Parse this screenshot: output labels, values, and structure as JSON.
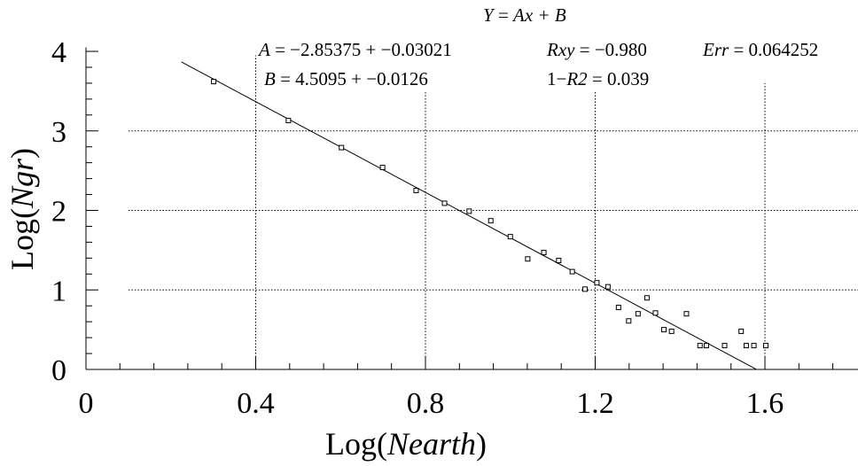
{
  "chart_data": {
    "type": "scatter",
    "equation": {
      "lhs": "Y",
      "rhs": "Ax + B"
    },
    "stats": {
      "A": {
        "symbol": "A",
        "text": " = −2.85375 + −0.03021"
      },
      "B": {
        "symbol": "B",
        "text": " = 4.5095 + −0.0126"
      },
      "Rxy": {
        "symbol": "Rxy",
        "text": " = −0.980"
      },
      "R2": {
        "prefix": "1−",
        "symbol": "R2",
        "text": " = 0.039"
      },
      "Err": {
        "symbol": "Err",
        "text": " = 0.064252"
      }
    },
    "xlabel": {
      "prefix": "Log(",
      "var": "Nearth",
      "suffix": ")"
    },
    "ylabel": {
      "prefix": "Log(",
      "var": "Ngr",
      "suffix": ")"
    },
    "xlim": [
      0,
      1.82
    ],
    "ylim": [
      0,
      4.05
    ],
    "x_ticks": [
      {
        "v": 0,
        "label": "0"
      },
      {
        "v": 0.4,
        "label": "0.4"
      },
      {
        "v": 0.8,
        "label": "0.8"
      },
      {
        "v": 1.2,
        "label": "1.2"
      },
      {
        "v": 1.6,
        "label": "1.6"
      }
    ],
    "y_ticks": [
      {
        "v": 0,
        "label": "0"
      },
      {
        "v": 1,
        "label": "1"
      },
      {
        "v": 2,
        "label": "2"
      },
      {
        "v": 3,
        "label": "3"
      },
      {
        "v": 4,
        "label": "4"
      }
    ],
    "grid": {
      "vertical": [
        {
          "x": 0.4,
          "y_from": 0,
          "y_to": 3.95
        },
        {
          "x": 0.8,
          "y_from": 0,
          "y_to": 3.5
        },
        {
          "x": 1.2,
          "y_from": 0,
          "y_to": 3.5
        },
        {
          "x": 1.6,
          "y_from": 0,
          "y_to": 3.6
        }
      ],
      "horizontal": [
        {
          "y": 1,
          "x_from": 0.1,
          "x_to": 1.82
        },
        {
          "y": 2,
          "x_from": 0.1,
          "x_to": 1.82
        },
        {
          "y": 3,
          "x_from": 0.1,
          "x_to": 1.82
        }
      ]
    },
    "fit": {
      "slope": -2.85375,
      "intercept": 4.5095,
      "x_from": 0.225,
      "x_to": 1.58
    },
    "points": [
      {
        "x": 0.301,
        "y": 3.62
      },
      {
        "x": 0.477,
        "y": 3.13
      },
      {
        "x": 0.602,
        "y": 2.79
      },
      {
        "x": 0.699,
        "y": 2.54
      },
      {
        "x": 0.778,
        "y": 2.25
      },
      {
        "x": 0.845,
        "y": 2.09
      },
      {
        "x": 0.903,
        "y": 1.99
      },
      {
        "x": 0.954,
        "y": 1.87
      },
      {
        "x": 1.0,
        "y": 1.67
      },
      {
        "x": 1.041,
        "y": 1.39
      },
      {
        "x": 1.079,
        "y": 1.47
      },
      {
        "x": 1.114,
        "y": 1.37
      },
      {
        "x": 1.146,
        "y": 1.23
      },
      {
        "x": 1.176,
        "y": 1.01
      },
      {
        "x": 1.204,
        "y": 1.09
      },
      {
        "x": 1.23,
        "y": 1.04
      },
      {
        "x": 1.255,
        "y": 0.78
      },
      {
        "x": 1.279,
        "y": 0.61
      },
      {
        "x": 1.301,
        "y": 0.7
      },
      {
        "x": 1.322,
        "y": 0.9
      },
      {
        "x": 1.342,
        "y": 0.71
      },
      {
        "x": 1.362,
        "y": 0.5
      },
      {
        "x": 1.38,
        "y": 0.48
      },
      {
        "x": 1.415,
        "y": 0.7
      },
      {
        "x": 1.447,
        "y": 0.3
      },
      {
        "x": 1.462,
        "y": 0.3
      },
      {
        "x": 1.505,
        "y": 0.3
      },
      {
        "x": 1.544,
        "y": 0.48
      },
      {
        "x": 1.556,
        "y": 0.3
      },
      {
        "x": 1.574,
        "y": 0.3
      },
      {
        "x": 1.602,
        "y": 0.3
      }
    ]
  }
}
